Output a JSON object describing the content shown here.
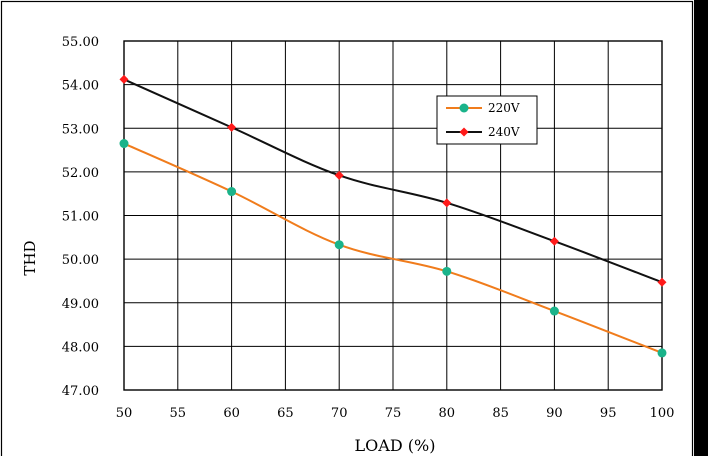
{
  "chart_data": {
    "type": "line",
    "xlabel": "LOAD (%)",
    "ylabel": "THD",
    "xlim": [
      50,
      100
    ],
    "ylim": [
      47,
      55
    ],
    "x_ticks": [
      "50",
      "55",
      "60",
      "65",
      "70",
      "75",
      "80",
      "85",
      "90",
      "95",
      "100"
    ],
    "y_ticks": [
      "47.00",
      "48.00",
      "49.00",
      "50.00",
      "51.00",
      "52.00",
      "53.00",
      "54.00",
      "55.00"
    ],
    "grid": true,
    "legend_position": "top-right",
    "x": [
      50,
      60,
      70,
      80,
      90,
      100
    ],
    "series": [
      {
        "name": "220V",
        "values": [
          52.65,
          51.55,
          50.33,
          49.72,
          48.81,
          47.85
        ],
        "line_color": "#f07c1c",
        "marker_color": "#1ab38a",
        "marker": "circle"
      },
      {
        "name": "240V",
        "values": [
          54.12,
          53.02,
          51.92,
          51.29,
          50.41,
          49.47
        ],
        "line_color": "#111111",
        "marker_color": "#ff1a1a",
        "marker": "diamond"
      }
    ]
  }
}
